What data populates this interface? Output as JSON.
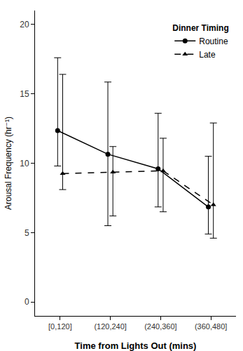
{
  "chart_data": {
    "type": "line",
    "x_label": "Time from Lights Out (mins)",
    "y_label": "Arousal Frequency (hr⁻¹)",
    "categories": [
      "[0,120]",
      "(120,240]",
      "(240,360]",
      "(360,480]"
    ],
    "legend_title": "Dinner Timing",
    "legend": "top-right",
    "grid": false,
    "ylim": [
      -1,
      21
    ],
    "yticks": [
      0,
      5,
      10,
      15,
      20
    ],
    "series": [
      {
        "name": "Routine",
        "color": "#000000",
        "marker": "circle",
        "line_style": "solid",
        "values": [
          12.35,
          10.65,
          9.6,
          6.85
        ],
        "error_lower": [
          9.8,
          5.5,
          6.85,
          4.9
        ],
        "error_upper": [
          17.6,
          15.85,
          13.6,
          10.5
        ]
      },
      {
        "name": "Late",
        "color": "#000000",
        "marker": "triangle-up",
        "line_style": "dash",
        "values": [
          9.25,
          9.35,
          9.45,
          7.0
        ],
        "error_lower": [
          8.1,
          6.2,
          6.5,
          4.6
        ],
        "error_upper": [
          16.4,
          11.2,
          11.8,
          12.9
        ]
      }
    ]
  }
}
